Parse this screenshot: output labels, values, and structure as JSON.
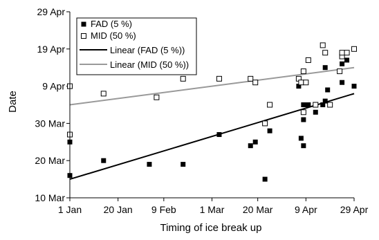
{
  "chart_data": {
    "type": "scatter",
    "title": "",
    "xlabel": "Timing of ice break up",
    "ylabel": "Date",
    "x_unit": "date",
    "y_unit": "date",
    "xlim": [
      "01-01",
      "04-29"
    ],
    "ylim": [
      "03-10",
      "04-29"
    ],
    "x_ticks": [
      {
        "value": "01-01",
        "label": "1 Jan"
      },
      {
        "value": "01-21",
        "label": "20 Jan"
      },
      {
        "value": "02-09",
        "label": "9 Feb"
      },
      {
        "value": "03-01",
        "label": "1 Mar"
      },
      {
        "value": "03-20",
        "label": "20 Mar"
      },
      {
        "value": "04-09",
        "label": "9 Apr"
      },
      {
        "value": "04-29",
        "label": "29 Apr"
      }
    ],
    "y_ticks": [
      {
        "value": "03-10",
        "label": "10 Mar"
      },
      {
        "value": "03-20",
        "label": "20 Mar"
      },
      {
        "value": "03-30",
        "label": "30 Mar"
      },
      {
        "value": "04-09",
        "label": "9 Apr"
      },
      {
        "value": "04-19",
        "label": "19 Apr"
      },
      {
        "value": "04-29",
        "label": "29 Apr"
      }
    ],
    "grid": false,
    "legend_position": "top-left",
    "series": [
      {
        "name": "FAD (5 %)",
        "marker": "filled-square",
        "color": "#000000",
        "points": [
          [
            "01-01",
            "03-16"
          ],
          [
            "01-01",
            "03-25"
          ],
          [
            "01-15",
            "03-20"
          ],
          [
            "02-03",
            "03-19"
          ],
          [
            "02-17",
            "03-19"
          ],
          [
            "03-04",
            "03-27"
          ],
          [
            "03-17",
            "03-24"
          ],
          [
            "03-19",
            "03-25"
          ],
          [
            "03-23",
            "03-15"
          ],
          [
            "03-25",
            "03-28"
          ],
          [
            "04-06",
            "04-09"
          ],
          [
            "04-07",
            "03-26"
          ],
          [
            "04-08",
            "03-24"
          ],
          [
            "04-08",
            "03-31"
          ],
          [
            "04-08",
            "04-04"
          ],
          [
            "04-09",
            "04-04"
          ],
          [
            "04-10",
            "04-04"
          ],
          [
            "04-13",
            "04-02"
          ],
          [
            "04-16",
            "04-04"
          ],
          [
            "04-17",
            "04-14"
          ],
          [
            "04-17",
            "04-05"
          ],
          [
            "04-18",
            "04-08"
          ],
          [
            "04-24",
            "04-10"
          ],
          [
            "04-24",
            "04-15"
          ],
          [
            "04-26",
            "04-16"
          ],
          [
            "04-29",
            "04-09"
          ]
        ]
      },
      {
        "name": "MID (50 %)",
        "marker": "open-square",
        "color": "#000000",
        "points": [
          [
            "01-01",
            "03-27"
          ],
          [
            "01-01",
            "04-09"
          ],
          [
            "01-15",
            "04-07"
          ],
          [
            "02-06",
            "04-06"
          ],
          [
            "02-17",
            "04-11"
          ],
          [
            "03-04",
            "04-11"
          ],
          [
            "03-17",
            "04-11"
          ],
          [
            "03-19",
            "04-10"
          ],
          [
            "03-23",
            "03-30"
          ],
          [
            "03-25",
            "04-04"
          ],
          [
            "04-06",
            "04-11"
          ],
          [
            "04-07",
            "04-10"
          ],
          [
            "04-08",
            "04-02"
          ],
          [
            "04-08",
            "04-13"
          ],
          [
            "04-09",
            "04-10"
          ],
          [
            "04-10",
            "04-16"
          ],
          [
            "04-13",
            "04-04"
          ],
          [
            "04-16",
            "04-20"
          ],
          [
            "04-17",
            "04-18"
          ],
          [
            "04-19",
            "04-04"
          ],
          [
            "04-23",
            "04-13"
          ],
          [
            "04-24",
            "04-17"
          ],
          [
            "04-24",
            "04-18"
          ],
          [
            "04-26",
            "04-18"
          ],
          [
            "04-29",
            "04-19"
          ]
        ]
      }
    ],
    "trendlines": [
      {
        "name": "Linear (FAD (5 %))",
        "color": "#000000",
        "from": [
          "01-01",
          "03-15"
        ],
        "to": [
          "04-29",
          "04-07"
        ]
      },
      {
        "name": "Linear (MID (50 %))",
        "color": "#999999",
        "from": [
          "01-01",
          "04-04"
        ],
        "to": [
          "04-29",
          "04-14"
        ]
      }
    ]
  }
}
